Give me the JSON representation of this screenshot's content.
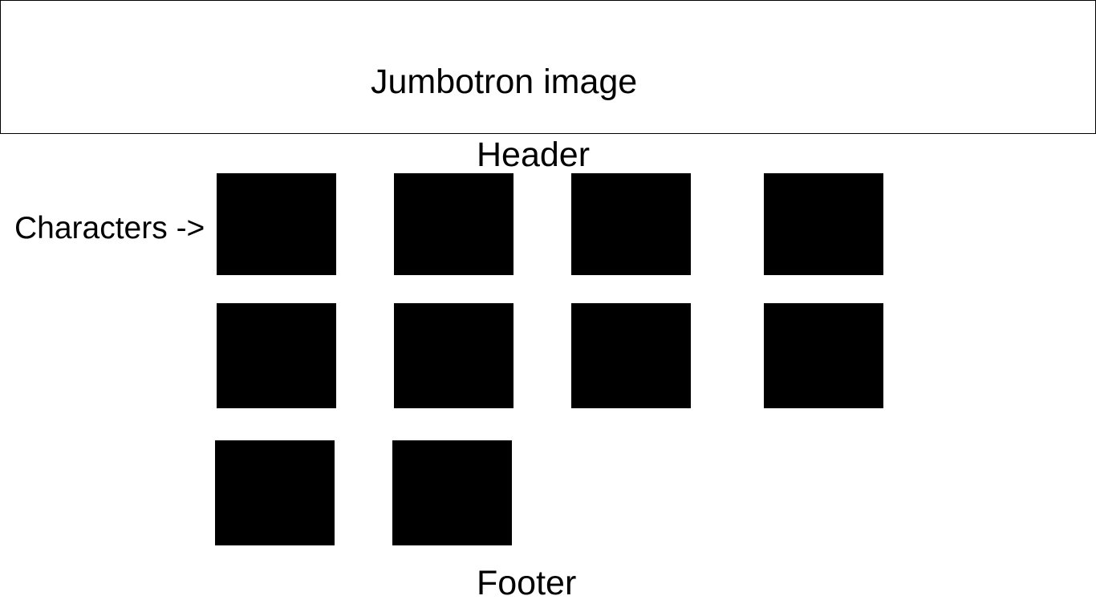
{
  "jumbotron": {
    "label": "Jumbotron image"
  },
  "header": {
    "label": "Header"
  },
  "characters": {
    "label": "Characters ->",
    "count": 10
  },
  "footer": {
    "label": "Footer"
  },
  "colors": {
    "tile": "#000000",
    "background": "#ffffff",
    "border": "#000000"
  }
}
